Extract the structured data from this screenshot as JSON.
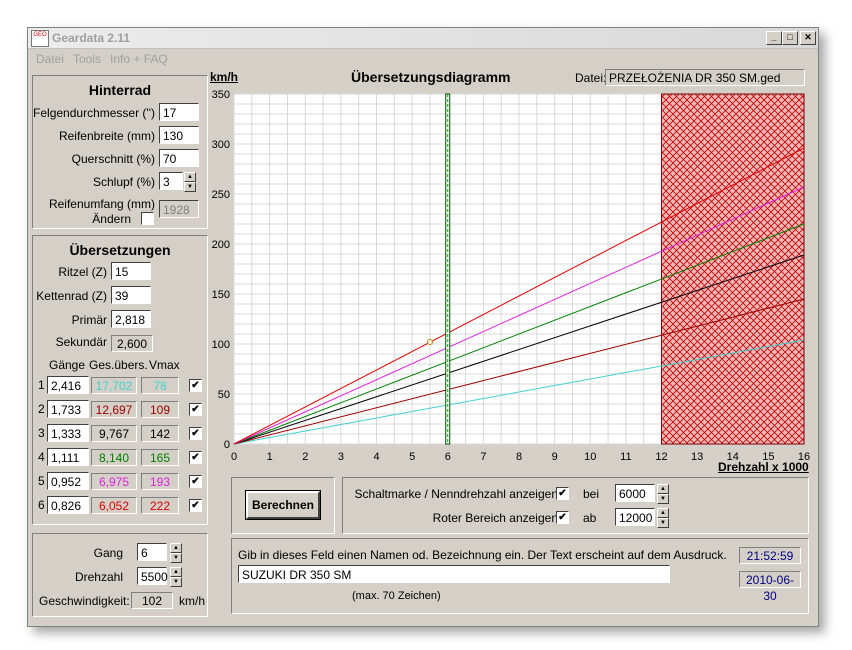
{
  "window": {
    "title": "Geardata 2.11",
    "icon_text": "GEO",
    "minimize": "_",
    "maximize": "□",
    "close": "✕"
  },
  "menu": [
    "Datei",
    "Tools",
    "Info + FAQ"
  ],
  "hinterrad": {
    "title": "Hinterrad",
    "felgendurchmesser_label": "Felgendurchmesser ('')",
    "felgendurchmesser": "17",
    "reifenbreite_label": "Reifenbreite (mm)",
    "reifenbreite": "130",
    "querschnitt_label": "Querschnitt (%)",
    "querschnitt": "70",
    "schlupf_label": "Schlupf (%)",
    "schlupf": "3",
    "reifenumfang_label": "Reifenumfang (mm)",
    "aendern_label": "Ändern",
    "reifenumfang": "1928"
  },
  "uebersetzungen": {
    "title": "Übersetzungen",
    "ritzel_label": "Ritzel (Z)",
    "ritzel": "15",
    "kettenrad_label": "Kettenrad (Z)",
    "kettenrad": "39",
    "primaer_label": "Primär",
    "primaer": "2,818",
    "sekundaer_label": "Sekundär",
    "sekundaer": "2,600",
    "col_gaenge": "Gänge",
    "col_ges": "Ges.übers.",
    "col_vmax": "Vmax",
    "gears": [
      {
        "n": "1",
        "ratio": "2,416",
        "total": "17,702",
        "vmax": "78",
        "color": "#40d0d0"
      },
      {
        "n": "2",
        "ratio": "1,733",
        "total": "12,697",
        "vmax": "109",
        "color": "#a00000"
      },
      {
        "n": "3",
        "ratio": "1,333",
        "total": "9,767",
        "vmax": "142",
        "color": "#000000"
      },
      {
        "n": "4",
        "ratio": "1,111",
        "total": "8,140",
        "vmax": "165",
        "color": "#008000"
      },
      {
        "n": "5",
        "ratio": "0,952",
        "total": "6,975",
        "vmax": "193",
        "color": "#e020e0"
      },
      {
        "n": "6",
        "ratio": "0,826",
        "total": "6,052",
        "vmax": "222",
        "color": "#e00000"
      }
    ]
  },
  "gang_panel": {
    "gang_label": "Gang",
    "gang": "6",
    "drehzahl_label": "Drehzahl",
    "drehzahl": "5500",
    "geschwindigkeit_label": "Geschwindigkeit:",
    "geschwindigkeit": "102",
    "unit": "km/h"
  },
  "diagram": {
    "title": "Übersetzungsdiagramm",
    "datei_label": "Datei:",
    "datei": "PRZEŁOŻENIA DR 350 SM.ged",
    "ylabel": "km/h",
    "xlabel": "Drehzahl x 1000"
  },
  "chart_data": {
    "type": "line",
    "x_ticks": [
      "0",
      "1",
      "2",
      "3",
      "4",
      "5",
      "6",
      "7",
      "8",
      "9",
      "10",
      "11",
      "12",
      "13",
      "14",
      "15",
      "16"
    ],
    "y_ticks": [
      "0",
      "50",
      "100",
      "150",
      "200",
      "250",
      "300",
      "350"
    ],
    "xlim": [
      0,
      16
    ],
    "ylim": [
      0,
      350
    ],
    "grid": true,
    "series": [
      {
        "x": [
          0,
          16
        ],
        "y": [
          0,
          104
        ],
        "color": "#40d0d0"
      },
      {
        "x": [
          0,
          16
        ],
        "y": [
          0,
          145
        ],
        "color": "#a00000"
      },
      {
        "x": [
          0,
          16
        ],
        "y": [
          0,
          189
        ],
        "color": "#000000"
      },
      {
        "x": [
          0,
          16
        ],
        "y": [
          0,
          220
        ],
        "color": "#008000"
      },
      {
        "x": [
          0,
          16
        ],
        "y": [
          0,
          257
        ],
        "color": "#e020e0"
      },
      {
        "x": [
          0,
          16
        ],
        "y": [
          0,
          296
        ],
        "color": "#e00000"
      }
    ],
    "shift_marker_rpm": 6,
    "red_zone_from_rpm": 12,
    "operating_point": {
      "x": 5.5,
      "y": 102
    }
  },
  "controls": {
    "berechnen": "Berechnen",
    "schaltmarke_label": "Schaltmarke / Nenndrehzahl anzeigen",
    "schaltmarke_checked": "✔",
    "bei_label": "bei",
    "bei": "6000",
    "roter_label": "Roter Bereich anzeigen",
    "roter_checked": "✔",
    "ab_label": "ab",
    "ab": "12000"
  },
  "footer": {
    "hint": "Gib in dieses Feld einen Namen od. Bezeichnung ein. Der Text erscheint auf dem Ausdruck.",
    "name": "SUZUKI DR 350 SM",
    "max_hint": "(max. 70 Zeichen)",
    "time": "21:52:59",
    "date": "2010-06-30"
  },
  "colors": {
    "window_bg": "#d4d0c8",
    "red_zone": "#e05050",
    "clock_text": "#000080"
  }
}
